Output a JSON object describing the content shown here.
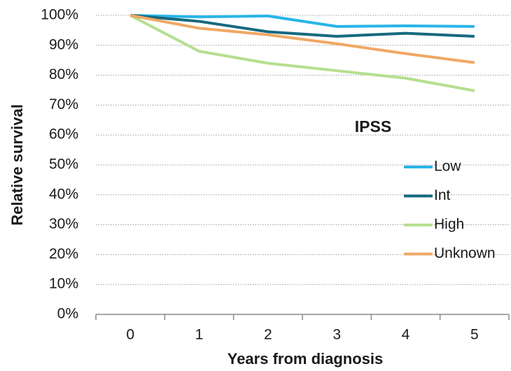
{
  "chart_data": {
    "type": "line",
    "x_label": "Years from diagnosis",
    "y_label": "Relative survival",
    "categories": [
      "0",
      "1",
      "2",
      "3",
      "4",
      "5"
    ],
    "ylim": [
      0,
      100
    ],
    "yticks": [
      {
        "value": 0,
        "label": "0%"
      },
      {
        "value": 10,
        "label": "10%"
      },
      {
        "value": 20,
        "label": "20%"
      },
      {
        "value": 30,
        "label": "30%"
      },
      {
        "value": 40,
        "label": "40%"
      },
      {
        "value": 50,
        "label": "50%"
      },
      {
        "value": 60,
        "label": "60%"
      },
      {
        "value": 70,
        "label": "70%"
      },
      {
        "value": 80,
        "label": "80%"
      },
      {
        "value": 90,
        "label": "90%"
      },
      {
        "value": 100,
        "label": "100%"
      }
    ],
    "grid": true,
    "legend_title": "IPSS",
    "series": [
      {
        "name": "Low",
        "color": "#29b5e8",
        "values": [
          100,
          99.5,
          99.8,
          96.3,
          96.5,
          96.3
        ]
      },
      {
        "name": "Int",
        "color": "#16697f",
        "values": [
          100,
          98,
          94.5,
          93,
          94,
          93
        ]
      },
      {
        "name": "High",
        "color": "#b5df8f",
        "values": [
          100,
          88,
          84,
          81.5,
          79,
          74.8
        ]
      },
      {
        "name": "Unknown",
        "color": "#f0a864",
        "values": [
          100,
          95.7,
          93.5,
          90.5,
          87.2,
          84.2
        ]
      }
    ]
  }
}
